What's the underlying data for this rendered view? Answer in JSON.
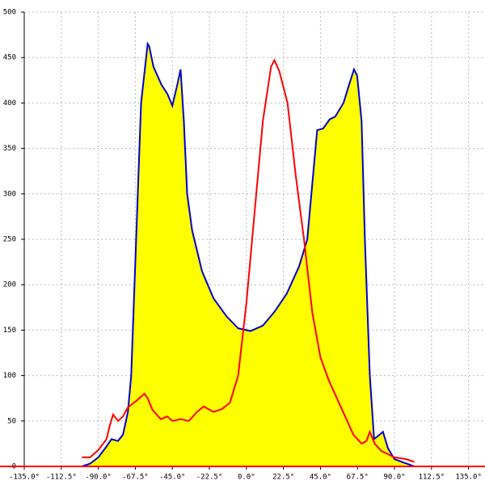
{
  "chart_data": {
    "type": "area",
    "xlim": [
      -135,
      145
    ],
    "ylim": [
      0,
      500
    ],
    "xticks": [
      {
        "value": -135,
        "label": "-135.0°"
      },
      {
        "value": -112.5,
        "label": "-112.5°"
      },
      {
        "value": -90,
        "label": "-90.0°"
      },
      {
        "value": -67.5,
        "label": "-67.5°"
      },
      {
        "value": -45,
        "label": "-45.0°"
      },
      {
        "value": -22.5,
        "label": "-22.5°"
      },
      {
        "value": 0,
        "label": "0.0°"
      },
      {
        "value": 22.5,
        "label": "22.5°"
      },
      {
        "value": 45,
        "label": "45.0°"
      },
      {
        "value": 67.5,
        "label": "67.5°"
      },
      {
        "value": 90,
        "label": "90.0°"
      },
      {
        "value": 112.5,
        "label": "112.5°"
      },
      {
        "value": 135,
        "label": "135.0°"
      }
    ],
    "yticks": [
      0,
      50,
      100,
      150,
      200,
      250,
      300,
      350,
      400,
      450,
      500
    ],
    "grid": true,
    "x_axis_color": "#ff0000",
    "series": [
      {
        "color": "#0000cc",
        "fill": "#ffff00",
        "x": [
          -100,
          -95,
          -90,
          -85,
          -82,
          -78,
          -75,
          -72,
          -70,
          -67,
          -64,
          -60,
          -59,
          -56.5,
          -51.6,
          -48,
          -45,
          -42,
          -40,
          -38,
          -36,
          -33,
          -27,
          -20,
          -12,
          -5,
          2.5,
          10,
          17,
          24.5,
          32,
          37,
          41,
          43,
          46.7,
          50.6,
          54,
          59,
          62.4,
          65.4,
          67.3,
          70,
          72,
          75,
          77.6,
          81,
          83,
          86,
          90,
          96,
          102
        ],
        "values": [
          0,
          3,
          10,
          22,
          30,
          28,
          35,
          60,
          100,
          250,
          400,
          465,
          462,
          440,
          420,
          410,
          397,
          420,
          437,
          380,
          300,
          260,
          215,
          185,
          165,
          152,
          149,
          155,
          170,
          190,
          220,
          250,
          330,
          370,
          372,
          382,
          385,
          400,
          420,
          437,
          430,
          380,
          250,
          100,
          30,
          35,
          38,
          20,
          8,
          4,
          0
        ]
      },
      {
        "color": "#ff0000",
        "x": [
          -100,
          -95,
          -90,
          -85,
          -83,
          -81,
          -78,
          -75,
          -72,
          -67,
          -62,
          -60,
          -57,
          -52,
          -48,
          -45,
          -40,
          -35,
          -30,
          -26,
          -20,
          -15,
          -10,
          -5,
          0,
          5,
          10,
          15,
          17,
          20,
          25,
          30,
          35,
          40,
          45,
          50,
          55,
          60,
          65,
          70,
          73,
          75,
          78,
          82,
          90,
          97,
          102
        ],
        "values": [
          10,
          10,
          18,
          30,
          45,
          57,
          50,
          55,
          65,
          72,
          80,
          75,
          62,
          52,
          55,
          50,
          52,
          50,
          60,
          66,
          60,
          63,
          70,
          100,
          180,
          280,
          380,
          440,
          447,
          435,
          400,
          320,
          250,
          170,
          120,
          95,
          75,
          55,
          35,
          25,
          28,
          38,
          25,
          17,
          10,
          8,
          5
        ]
      }
    ]
  }
}
